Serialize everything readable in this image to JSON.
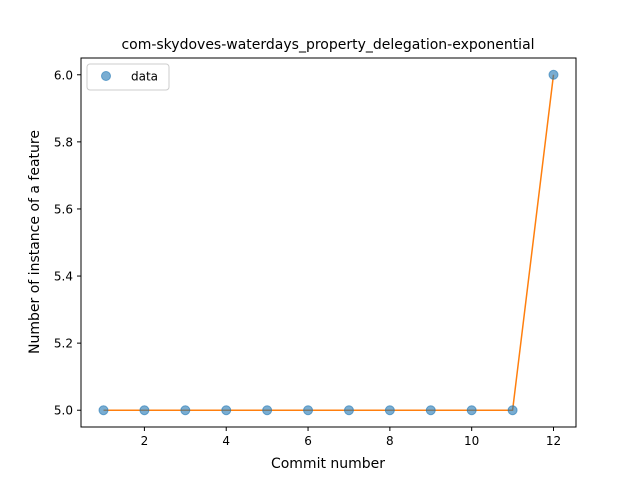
{
  "chart_data": {
    "type": "scatter",
    "title": "com-skydoves-waterdays_property_delegation-exponential",
    "xlabel": "Commit number",
    "ylabel": "Number of instance of a feature",
    "xlim": [
      0.45,
      12.55
    ],
    "ylim": [
      4.95,
      6.05
    ],
    "x_ticks": [
      2,
      4,
      6,
      8,
      10,
      12
    ],
    "x_tick_labels": [
      "2",
      "4",
      "6",
      "8",
      "10",
      "12"
    ],
    "y_ticks": [
      5.0,
      5.2,
      5.4,
      5.6,
      5.8,
      6.0
    ],
    "y_tick_labels": [
      "5.0",
      "5.2",
      "5.4",
      "5.6",
      "5.8",
      "6.0"
    ],
    "grid": false,
    "legend_position": "top-left",
    "series": [
      {
        "name": "data",
        "style": "markers",
        "color": "#1f77b4",
        "x": [
          1,
          2,
          3,
          4,
          5,
          6,
          7,
          8,
          9,
          10,
          11,
          12
        ],
        "y": [
          5,
          5,
          5,
          5,
          5,
          5,
          5,
          5,
          5,
          5,
          5,
          6
        ]
      },
      {
        "style": "line",
        "color": "#ff7f0e",
        "x": [
          1,
          2,
          3,
          4,
          5,
          6,
          7,
          8,
          9,
          10,
          11,
          12
        ],
        "y": [
          5,
          5,
          5,
          5,
          5,
          5,
          5,
          5,
          5,
          5,
          5,
          6
        ]
      }
    ]
  }
}
